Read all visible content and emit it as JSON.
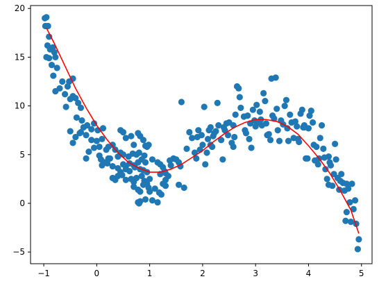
{
  "chart_data": {
    "type": "scatter",
    "title": "",
    "xlabel": "",
    "ylabel": "",
    "xlim": [
      -1.25,
      5.2
    ],
    "ylim": [
      -6.2,
      20.3
    ],
    "xticks": [
      -1,
      0,
      1,
      2,
      3,
      4,
      5
    ],
    "yticks": [
      -5,
      0,
      5,
      10,
      15,
      20
    ],
    "xtick_labels": [
      "−1",
      "0",
      "1",
      "2",
      "3",
      "4",
      "5"
    ],
    "ytick_labels": [
      "−5",
      "0",
      "5",
      "10",
      "15",
      "20"
    ],
    "grid": false,
    "legend": "none",
    "series": [
      {
        "kind": "scatter",
        "color": "#1f77b4",
        "points": [
          [
            -0.98,
            19.0
          ],
          [
            -0.95,
            19.1
          ],
          [
            -0.97,
            18.2
          ],
          [
            -0.92,
            18.2
          ],
          [
            -0.9,
            17.1
          ],
          [
            -0.93,
            16.2
          ],
          [
            -0.88,
            15.8
          ],
          [
            -0.83,
            16.0
          ],
          [
            -0.8,
            15.5
          ],
          [
            -0.95,
            15.0
          ],
          [
            -0.9,
            14.9
          ],
          [
            -0.78,
            15.0
          ],
          [
            -0.85,
            14.2
          ],
          [
            -0.75,
            13.9
          ],
          [
            -0.82,
            13.1
          ],
          [
            -0.78,
            11.5
          ],
          [
            -0.7,
            11.8
          ],
          [
            -0.65,
            12.5
          ],
          [
            -0.6,
            11.2
          ],
          [
            -0.55,
            12.0
          ],
          [
            -0.52,
            12.5
          ],
          [
            -0.45,
            12.8
          ],
          [
            -0.58,
            9.9
          ],
          [
            -0.5,
            10.7
          ],
          [
            -0.45,
            11.0
          ],
          [
            -0.4,
            10.8
          ],
          [
            -0.35,
            10.3
          ],
          [
            -0.3,
            9.8
          ],
          [
            -0.38,
            8.8
          ],
          [
            -0.32,
            7.2
          ],
          [
            -0.28,
            8.5
          ],
          [
            -0.25,
            7.8
          ],
          [
            -0.18,
            8.0
          ],
          [
            -0.1,
            7.6
          ],
          [
            -0.05,
            8.2
          ],
          [
            0.02,
            7.5
          ],
          [
            -0.5,
            7.4
          ],
          [
            -0.4,
            6.8
          ],
          [
            -0.3,
            7.3
          ],
          [
            -0.45,
            6.2
          ],
          [
            -0.2,
            7.0
          ],
          [
            -0.1,
            6.5
          ],
          [
            -0.15,
            5.3
          ],
          [
            -0.05,
            5.7
          ],
          [
            0.0,
            6.4
          ],
          [
            0.05,
            5.8
          ],
          [
            0.1,
            6.6
          ],
          [
            0.12,
            7.7
          ],
          [
            -0.2,
            4.6
          ],
          [
            0.05,
            4.9
          ],
          [
            0.08,
            4.5
          ],
          [
            0.15,
            4.2
          ],
          [
            0.18,
            5.5
          ],
          [
            0.22,
            5.8
          ],
          [
            0.2,
            4.1
          ],
          [
            0.25,
            4.6
          ],
          [
            0.3,
            6.0
          ],
          [
            0.35,
            5.5
          ],
          [
            0.4,
            4.8
          ],
          [
            0.1,
            3.9
          ],
          [
            0.3,
            3.8
          ],
          [
            0.45,
            7.5
          ],
          [
            0.5,
            7.3
          ],
          [
            0.55,
            6.7
          ],
          [
            0.65,
            6.9
          ],
          [
            0.7,
            6.0
          ],
          [
            0.78,
            7.2
          ],
          [
            0.82,
            6.9
          ],
          [
            0.88,
            6.5
          ],
          [
            0.92,
            5.9
          ],
          [
            0.95,
            5.8
          ],
          [
            0.98,
            6.0
          ],
          [
            0.45,
            5.2
          ],
          [
            0.5,
            5.0
          ],
          [
            0.6,
            4.8
          ],
          [
            0.68,
            5.1
          ],
          [
            0.75,
            5.0
          ],
          [
            0.8,
            5.2
          ],
          [
            0.85,
            4.5
          ],
          [
            0.9,
            4.9
          ],
          [
            0.92,
            4.2
          ],
          [
            0.5,
            4.0
          ],
          [
            0.55,
            3.8
          ],
          [
            0.62,
            4.1
          ],
          [
            0.7,
            3.9
          ],
          [
            0.78,
            4.2
          ],
          [
            0.4,
            3.6
          ],
          [
            0.45,
            3.2
          ],
          [
            0.55,
            3.5
          ],
          [
            0.62,
            3.3
          ],
          [
            0.72,
            3.7
          ],
          [
            0.82,
            3.5
          ],
          [
            0.88,
            3.4
          ],
          [
            0.95,
            3.2
          ],
          [
            0.3,
            2.6
          ],
          [
            0.4,
            2.8
          ],
          [
            0.48,
            2.9
          ],
          [
            0.55,
            2.4
          ],
          [
            0.65,
            2.5
          ],
          [
            0.7,
            2.2
          ],
          [
            0.75,
            2.6
          ],
          [
            0.85,
            2.8
          ],
          [
            0.9,
            2.3
          ],
          [
            0.95,
            2.0
          ],
          [
            0.7,
            1.7
          ],
          [
            0.78,
            1.4
          ],
          [
            0.82,
            1.2
          ],
          [
            0.88,
            1.9
          ],
          [
            0.98,
            1.6
          ],
          [
            1.0,
            2.5
          ],
          [
            0.78,
            0.1
          ],
          [
            0.8,
            0.0
          ],
          [
            0.82,
            0.2
          ],
          [
            0.92,
            0.4
          ],
          [
            1.05,
            0.3
          ],
          [
            1.15,
            0.1
          ],
          [
            1.0,
            1.2
          ],
          [
            1.1,
            1.5
          ],
          [
            1.18,
            1.1
          ],
          [
            1.22,
            0.9
          ],
          [
            1.25,
            2.0
          ],
          [
            1.3,
            1.8
          ],
          [
            1.2,
            3.0
          ],
          [
            1.3,
            3.1
          ],
          [
            1.35,
            2.8
          ],
          [
            1.3,
            2.4
          ],
          [
            1.05,
            4.5
          ],
          [
            1.15,
            4.2
          ],
          [
            1.2,
            4.0
          ],
          [
            1.25,
            3.7
          ],
          [
            1.28,
            3.3
          ],
          [
            1.4,
            3.9
          ],
          [
            1.45,
            4.6
          ],
          [
            1.38,
            4.4
          ],
          [
            1.5,
            4.5
          ],
          [
            1.55,
            4.2
          ],
          [
            1.58,
            3.8
          ],
          [
            1.55,
            1.9
          ],
          [
            1.65,
            1.6
          ],
          [
            1.6,
            10.4
          ],
          [
            1.7,
            5.6
          ],
          [
            1.75,
            7.3
          ],
          [
            1.8,
            6.7
          ],
          [
            1.85,
            5.2
          ],
          [
            1.88,
            4.6
          ],
          [
            1.9,
            6.8
          ],
          [
            1.95,
            5.5
          ],
          [
            1.98,
            7.0
          ],
          [
            2.0,
            6.0
          ],
          [
            2.03,
            9.9
          ],
          [
            2.05,
            4.0
          ],
          [
            2.08,
            5.2
          ],
          [
            2.1,
            6.6
          ],
          [
            2.12,
            7.5
          ],
          [
            2.15,
            7.8
          ],
          [
            2.18,
            5.8
          ],
          [
            2.2,
            6.9
          ],
          [
            2.22,
            7.2
          ],
          [
            2.25,
            7.4
          ],
          [
            2.28,
            10.3
          ],
          [
            2.3,
            8.0
          ],
          [
            2.35,
            6.5
          ],
          [
            2.38,
            4.5
          ],
          [
            2.4,
            7.8
          ],
          [
            2.45,
            8.2
          ],
          [
            2.48,
            7.0
          ],
          [
            2.5,
            8.3
          ],
          [
            2.55,
            6.2
          ],
          [
            2.58,
            5.8
          ],
          [
            2.6,
            6.8
          ],
          [
            2.62,
            9.1
          ],
          [
            2.65,
            12.0
          ],
          [
            2.68,
            11.8
          ],
          [
            2.7,
            10.9
          ],
          [
            2.72,
            9.8
          ],
          [
            2.78,
            8.9
          ],
          [
            2.8,
            7.5
          ],
          [
            2.82,
            7.2
          ],
          [
            2.85,
            9.0
          ],
          [
            2.88,
            6.6
          ],
          [
            2.9,
            8.2
          ],
          [
            2.92,
            5.7
          ],
          [
            2.95,
            9.6
          ],
          [
            2.98,
            8.5
          ],
          [
            3.0,
            7.9
          ],
          [
            3.02,
            10.1
          ],
          [
            3.05,
            8.3
          ],
          [
            3.08,
            9.4
          ],
          [
            3.1,
            8.6
          ],
          [
            3.12,
            8.0
          ],
          [
            3.15,
            11.3
          ],
          [
            3.18,
            10.5
          ],
          [
            3.2,
            8.2
          ],
          [
            3.22,
            7.0
          ],
          [
            3.25,
            7.1
          ],
          [
            3.28,
            6.5
          ],
          [
            3.3,
            12.8
          ],
          [
            3.32,
            9.0
          ],
          [
            3.35,
            8.7
          ],
          [
            3.38,
            12.9
          ],
          [
            3.4,
            9.7
          ],
          [
            3.42,
            7.5
          ],
          [
            3.45,
            6.4
          ],
          [
            3.48,
            8.5
          ],
          [
            3.52,
            8.1
          ],
          [
            3.55,
            10.0
          ],
          [
            3.58,
            10.6
          ],
          [
            3.6,
            7.7
          ],
          [
            3.62,
            6.4
          ],
          [
            3.65,
            9.1
          ],
          [
            3.68,
            8.3
          ],
          [
            3.72,
            6.7
          ],
          [
            3.75,
            8.4
          ],
          [
            3.78,
            7.9
          ],
          [
            3.8,
            6.6
          ],
          [
            3.82,
            6.3
          ],
          [
            3.85,
            9.2
          ],
          [
            3.88,
            9.6
          ],
          [
            3.9,
            7.8
          ],
          [
            3.92,
            8.0
          ],
          [
            3.95,
            4.6
          ],
          [
            4.0,
            7.7
          ],
          [
            4.02,
            9.0
          ],
          [
            4.05,
            9.5
          ],
          [
            4.08,
            8.3
          ],
          [
            4.1,
            6.0
          ],
          [
            4.12,
            4.4
          ],
          [
            4.15,
            5.8
          ],
          [
            4.18,
            4.0
          ],
          [
            4.2,
            4.6
          ],
          [
            4.22,
            6.7
          ],
          [
            4.25,
            8.0
          ],
          [
            4.28,
            5.6
          ],
          [
            4.3,
            4.7
          ],
          [
            4.32,
            3.5
          ],
          [
            4.35,
            2.5
          ],
          [
            4.38,
            4.8
          ],
          [
            4.4,
            4.2
          ],
          [
            4.42,
            3.9
          ],
          [
            4.45,
            1.8
          ],
          [
            4.48,
            3.0
          ],
          [
            4.5,
            6.1
          ],
          [
            4.52,
            4.5
          ],
          [
            4.55,
            2.6
          ],
          [
            4.58,
            1.4
          ],
          [
            4.6,
            2.3
          ],
          [
            4.62,
            3.0
          ],
          [
            4.65,
            2.1
          ],
          [
            4.68,
            1.3
          ],
          [
            4.7,
            -1.8
          ],
          [
            4.72,
            -0.9
          ],
          [
            4.75,
            1.5
          ],
          [
            4.78,
            0.1
          ],
          [
            4.8,
            -1.9
          ],
          [
            4.82,
            2.0
          ],
          [
            4.85,
            -0.6
          ],
          [
            4.88,
            0.3
          ],
          [
            4.9,
            -2.1
          ],
          [
            4.93,
            -4.7
          ],
          [
            4.95,
            -3.7
          ],
          [
            3.92,
            7.8
          ],
          [
            3.98,
            4.6
          ],
          [
            4.38,
            1.9
          ],
          [
            4.72,
            2.0
          ],
          [
            2.42,
            7.5
          ],
          [
            2.58,
            8.0
          ],
          [
            1.92,
            7.5
          ],
          [
            2.15,
            6.0
          ],
          [
            0.22,
            4.6
          ],
          [
            0.35,
            2.4
          ]
        ]
      },
      {
        "kind": "line",
        "color": "#ff0000",
        "fit": "cubic",
        "x": [
          -0.95,
          -0.8,
          -0.6,
          -0.4,
          -0.2,
          0.0,
          0.2,
          0.4,
          0.6,
          0.8,
          1.0,
          1.2,
          1.4,
          1.6,
          1.8,
          2.0,
          2.2,
          2.4,
          2.6,
          2.8,
          3.0,
          3.2,
          3.4,
          3.6,
          3.8,
          4.0,
          4.2,
          4.4,
          4.6,
          4.8,
          4.95
        ],
        "y": [
          18.0,
          16.4,
          14.1,
          11.8,
          9.8,
          8.0,
          6.5,
          5.2,
          4.2,
          3.6,
          3.2,
          3.2,
          3.5,
          4.0,
          4.7,
          5.4,
          6.3,
          7.1,
          7.8,
          8.3,
          8.6,
          8.6,
          8.4,
          7.9,
          7.1,
          5.9,
          4.6,
          3.1,
          1.3,
          -0.7,
          -3.1
        ]
      }
    ]
  }
}
